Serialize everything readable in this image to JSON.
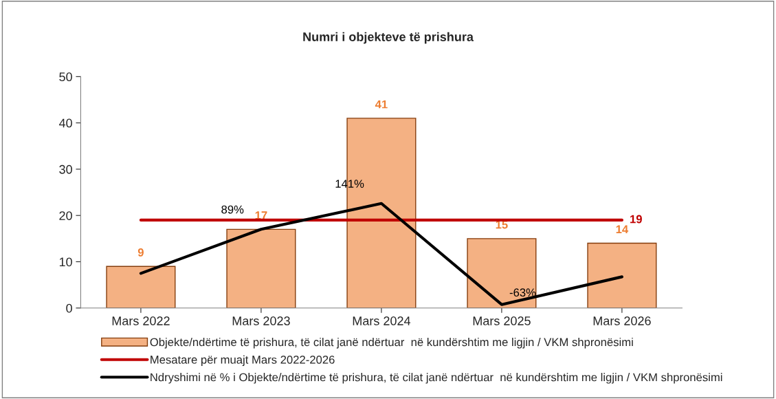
{
  "chart_data": {
    "type": "bar",
    "title": "Numri i objekteve të prishura",
    "categories": [
      "Mars 2022",
      "Mars 2023",
      "Mars 2024",
      "Mars 2025",
      "Mars 2026"
    ],
    "series": [
      {
        "name": "Objekte/ndërtime të prishura, të cilat janë ndërtuar  në kundërshtim me ligjin / VKM shpronësimi",
        "color": "#f4b183",
        "values": [
          9,
          17,
          41,
          15,
          14
        ],
        "value_labels": [
          "9",
          "17",
          "41",
          "15",
          "14"
        ]
      },
      {
        "name": "Mesatare për muajt Mars 2022-2026",
        "type": "line",
        "color": "#c00000",
        "values": [
          19,
          19,
          19,
          19,
          19
        ],
        "value_labels": [
          null,
          null,
          null,
          null,
          "19"
        ]
      },
      {
        "name": "Ndryshimi në % i Objekte/ndërtime të prishura, të cilat janë ndërtuar  në kundërshtim me ligjin / VKM shpronësimi",
        "type": "line",
        "color": "#000000",
        "axis": "y2",
        "values": [
          0,
          89,
          141,
          -63,
          -7
        ],
        "value_labels": [
          null,
          "89%",
          "141%",
          "-63%",
          null
        ]
      }
    ],
    "ylim": [
      0,
      50
    ],
    "yticks": [
      0,
      10,
      20,
      30,
      40,
      50
    ],
    "y2lim": [
      -70,
      397
    ],
    "tick_labels": "xy",
    "grid": false,
    "legend": "bottom"
  }
}
